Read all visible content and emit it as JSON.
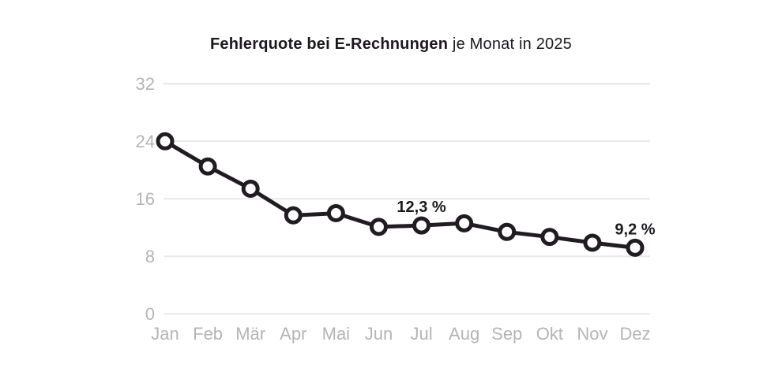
{
  "title": {
    "bold": "Fehlerquote bei E-Rechnungen",
    "regular": " je Monat in 2025"
  },
  "colors": {
    "line": "#201c21",
    "marker_fill": "#ffffff",
    "grid": "#e9e8e8",
    "axis_label": "#b6b4b6",
    "title_text": "#1c191d",
    "annotation_text": "#1c191d",
    "background": "#ffffff"
  },
  "chart_data": {
    "type": "line",
    "title": "Fehlerquote bei E-Rechnungen je Monat in 2025",
    "categories": [
      "Jan",
      "Feb",
      "Mär",
      "Apr",
      "Mai",
      "Jun",
      "Jul",
      "Aug",
      "Sep",
      "Okt",
      "Nov",
      "Dez"
    ],
    "values": [
      24.0,
      20.5,
      17.4,
      13.7,
      14.0,
      12.1,
      12.3,
      12.6,
      11.4,
      10.7,
      9.9,
      9.2
    ],
    "unit": "%",
    "xlabel": "",
    "ylabel": "",
    "ylim": [
      0,
      32
    ],
    "yticks": [
      0,
      8,
      16,
      24,
      32
    ],
    "grid": true,
    "legend": false,
    "annotations": [
      {
        "category": "Jul",
        "index": 6,
        "text": "12,3 %"
      },
      {
        "category": "Dez",
        "index": 11,
        "text": "9,2 %"
      }
    ]
  }
}
